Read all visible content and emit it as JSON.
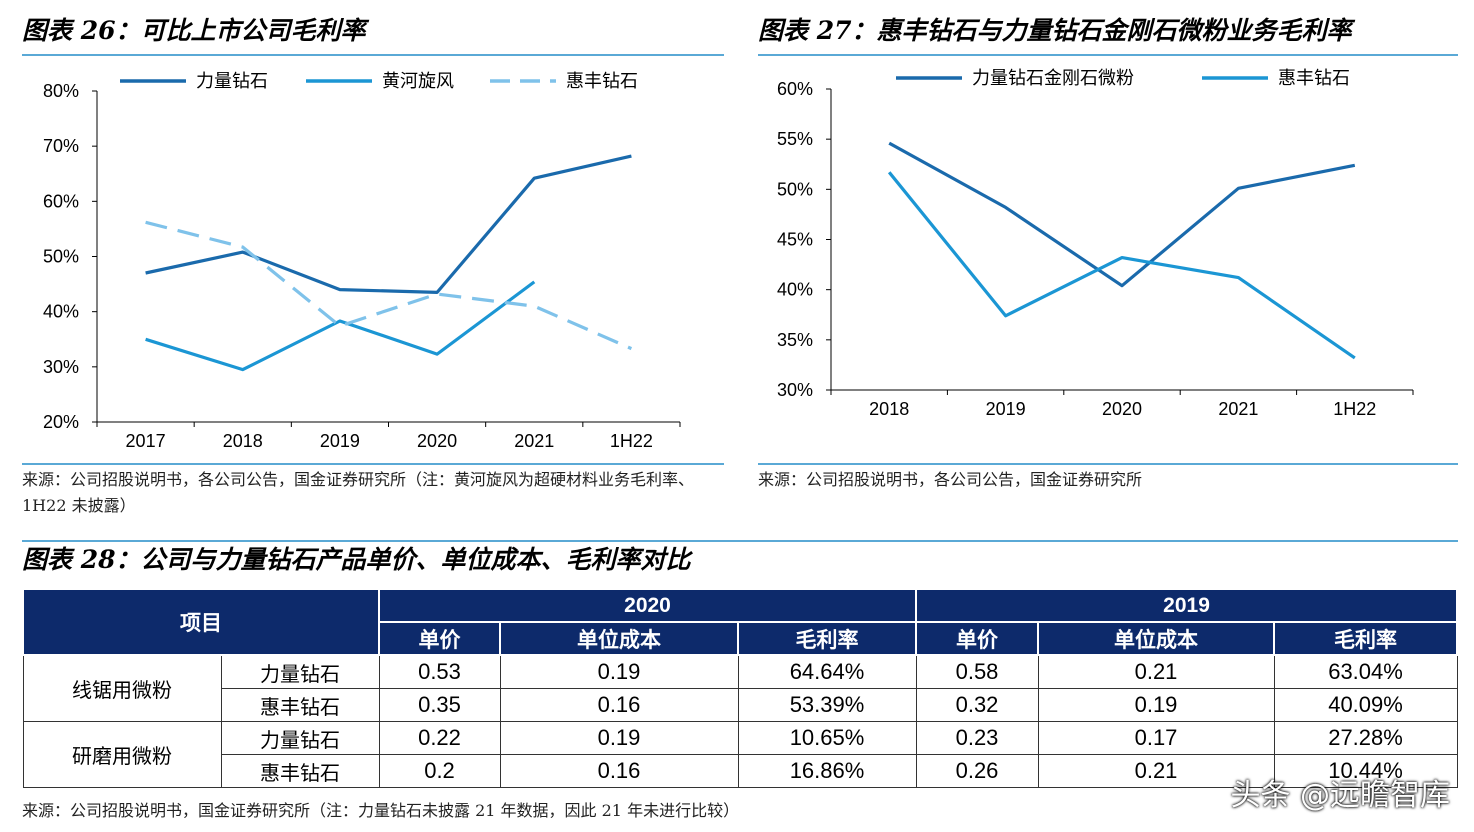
{
  "fig26": {
    "title": "图表 26：可比上市公司毛利率",
    "source": "来源：公司招股说明书，各公司公告，国金证券研究所（注：黄河旋风为超硬材料业务毛利率、1H22 未披露）"
  },
  "fig27": {
    "title": "图表 27：惠丰钻石与力量钻石金刚石微粉业务毛利率",
    "source": "来源：公司招股说明书，各公司公告，国金证券研究所"
  },
  "fig28": {
    "title": "图表 28：公司与力量钻石产品单价、单位成本、毛利率对比",
    "source": "来源：公司招股说明书，国金证券研究所（注：力量钻石未披露 21 年数据，因此 21 年未进行比较）",
    "header": {
      "item": "项目",
      "year_a": "2020",
      "year_b": "2019",
      "cols": [
        "单价",
        "单位成本",
        "毛利率",
        "单价",
        "单位成本",
        "毛利率"
      ]
    },
    "groups": [
      {
        "name": "线锯用微粉",
        "rows": [
          {
            "company": "力量钻石",
            "cells": [
              "0.53",
              "0.19",
              "64.64%",
              "0.58",
              "0.21",
              "63.04%"
            ]
          },
          {
            "company": "惠丰钻石",
            "cells": [
              "0.35",
              "0.16",
              "53.39%",
              "0.32",
              "0.19",
              "40.09%"
            ]
          }
        ]
      },
      {
        "name": "研磨用微粉",
        "rows": [
          {
            "company": "力量钻石",
            "cells": [
              "0.22",
              "0.19",
              "10.65%",
              "0.23",
              "0.17",
              "27.28%"
            ]
          },
          {
            "company": "惠丰钻石",
            "cells": [
              "0.2",
              "0.16",
              "16.86%",
              "0.26",
              "0.21",
              "10.44%"
            ]
          }
        ]
      }
    ]
  },
  "watermark": "头条 @远瞻智库",
  "chart_data": [
    {
      "type": "line",
      "categories": [
        "2017",
        "2018",
        "2019",
        "2020",
        "2021",
        "1H22"
      ],
      "ylim": [
        20,
        80
      ],
      "yticks": [
        "20%",
        "30%",
        "40%",
        "50%",
        "60%",
        "70%",
        "80%"
      ],
      "series": [
        {
          "name": "力量钻石",
          "color": "#1a6aac",
          "dash": false,
          "values": [
            47.0,
            50.8,
            44.0,
            43.5,
            64.2,
            68.2
          ]
        },
        {
          "name": "黄河旋风",
          "color": "#1b96d4",
          "dash": false,
          "values": [
            35.0,
            29.5,
            38.3,
            32.3,
            45.4,
            null
          ]
        },
        {
          "name": "惠丰钻石",
          "color": "#7fc2ea",
          "dash": true,
          "values": [
            56.2,
            51.7,
            37.4,
            43.2,
            41.0,
            33.3
          ]
        }
      ]
    },
    {
      "type": "line",
      "categories": [
        "2018",
        "2019",
        "2020",
        "2021",
        "1H22"
      ],
      "ylim": [
        30,
        60
      ],
      "yticks": [
        "30%",
        "35%",
        "40%",
        "45%",
        "50%",
        "55%",
        "60%"
      ],
      "series": [
        {
          "name": "力量钻石金刚石微粉",
          "color": "#1a6aac",
          "dash": false,
          "values": [
            54.6,
            48.2,
            40.4,
            50.1,
            52.4
          ]
        },
        {
          "name": "惠丰钻石",
          "color": "#1b96d4",
          "dash": false,
          "values": [
            51.7,
            37.4,
            43.2,
            41.2,
            33.2
          ]
        }
      ]
    }
  ]
}
